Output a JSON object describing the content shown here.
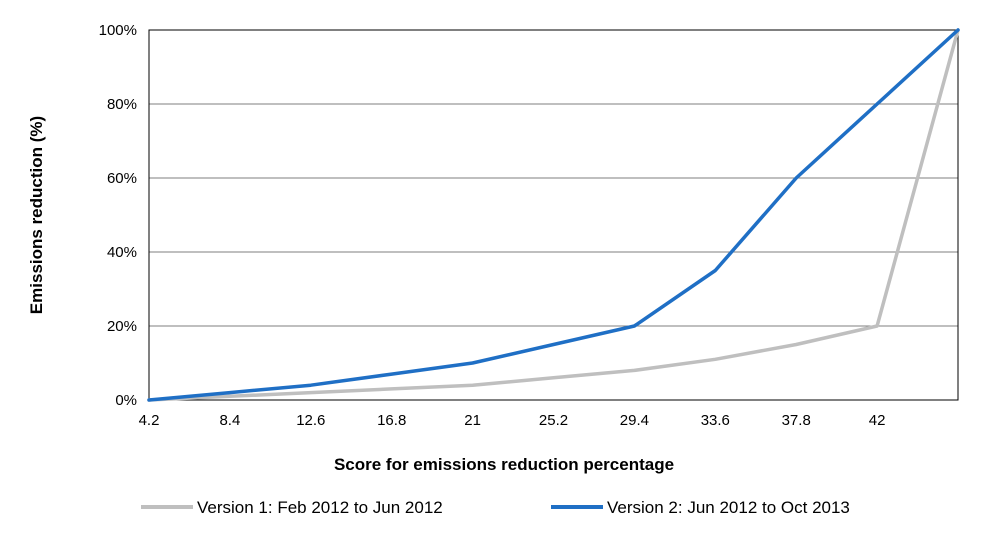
{
  "chart_data": {
    "type": "line",
    "title": "",
    "xlabel": "Score for emissions reduction percentage",
    "ylabel": "Emissions reduction (%)",
    "x": [
      4.2,
      8.4,
      12.6,
      16.8,
      21,
      25.2,
      29.4,
      33.6,
      37.8,
      42,
      46.2
    ],
    "x_tick_labels": [
      "4.2",
      "8.4",
      "12.6",
      "16.8",
      "21",
      "25.2",
      "29.4",
      "33.6",
      "37.8",
      "42"
    ],
    "y_tick_labels": [
      "0%",
      "20%",
      "40%",
      "60%",
      "80%",
      "100%"
    ],
    "y_ticks": [
      0,
      20,
      40,
      60,
      80,
      100
    ],
    "ylim": [
      0,
      100
    ],
    "xlim": [
      4.2,
      46.2
    ],
    "grid": "horizontal",
    "legend_position": "bottom",
    "series": [
      {
        "name": "Version 1: Feb 2012 to Jun 2012",
        "color": "#bfbfbf",
        "values": [
          0,
          1,
          2,
          3,
          4,
          6,
          8,
          11,
          15,
          20,
          100
        ]
      },
      {
        "name": "Version 2: Jun 2012 to Oct 2013",
        "color": "#1f6fc5",
        "values": [
          0,
          2,
          4,
          7,
          10,
          15,
          20,
          35,
          60,
          80,
          100
        ]
      }
    ]
  }
}
